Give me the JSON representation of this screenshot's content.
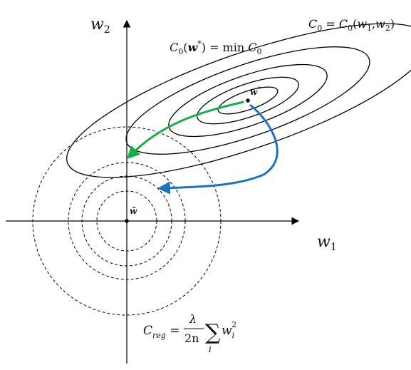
{
  "axes": {
    "x_label": "w",
    "x_sub": "1",
    "y_label": "w",
    "y_sub": "2"
  },
  "labels": {
    "loss_function": {
      "lhs": "C",
      "lhs_sub": "0",
      "eq": " = ",
      "rhs": "C",
      "rhs_sub": "0",
      "args_open": "(",
      "arg1": "w",
      "arg1_sub": "1",
      "comma": ",",
      "arg2": "w",
      "arg2_sub": "2",
      "args_close": ")"
    },
    "minimum": {
      "c": "C",
      "c_sub": "0",
      "open": "(",
      "w": "w",
      "star": "*",
      "close": ")",
      "eq": " = min ",
      "c2": "C",
      "c2_sub": "0"
    },
    "optimum_point": {
      "w": "w",
      "star": "*"
    },
    "regularized_point": {
      "w": "w̃"
    },
    "regularization": {
      "c": "C",
      "c_sub": "reg",
      "eq": " = ",
      "numerator": "λ",
      "denominator": "2n",
      "sum": "∑",
      "sum_index": "i",
      "term": "w",
      "term_sub": "i",
      "term_sup": "2"
    }
  },
  "colors": {
    "axis": "#000000",
    "contour": "#000000",
    "path_green": "#1aab4a",
    "path_blue": "#1e73be",
    "reg_contour": "#000000"
  }
}
